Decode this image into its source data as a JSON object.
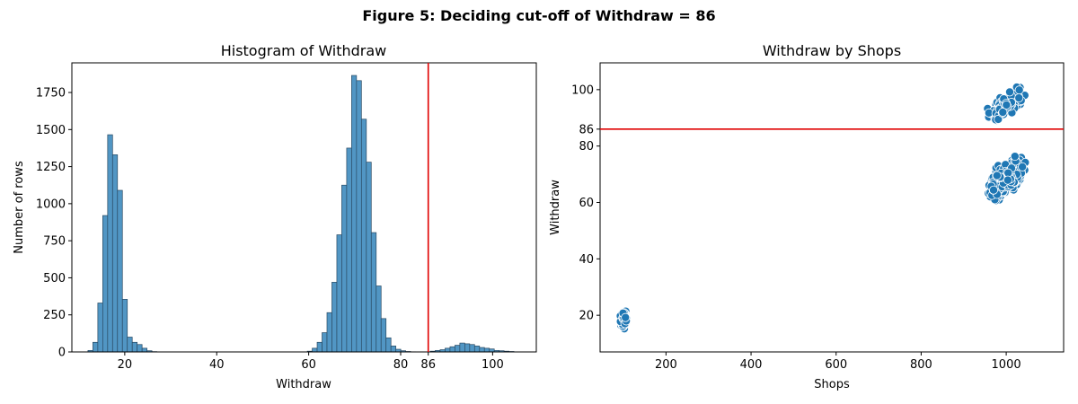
{
  "figure_title": "Figure 5: Deciding cut-off of Withdraw = 86",
  "colors": {
    "bar": "#5196c4",
    "bar_edge": "#2a4a63",
    "point": "#1f77b4",
    "cutoff": "#e00000"
  },
  "chart_data": [
    {
      "type": "bar",
      "title": "Histogram of Withdraw",
      "xlabel": "Withdraw",
      "ylabel": "Number of rows",
      "xlim": [
        8.5,
        109.5
      ],
      "ylim": [
        0,
        1950
      ],
      "grid": false,
      "bin_width": 1.07,
      "bin_starts": [
        12.0,
        13.07,
        14.14,
        15.21,
        16.28,
        17.35,
        18.42,
        19.49,
        20.56,
        21.63,
        22.7,
        23.77,
        24.84,
        25.91,
        59.7,
        60.77,
        61.84,
        62.91,
        63.98,
        65.05,
        66.12,
        67.19,
        68.26,
        69.33,
        70.4,
        71.47,
        72.54,
        73.61,
        74.68,
        75.75,
        76.82,
        77.89,
        78.96,
        80.03,
        81.1,
        82.17,
        86.45,
        87.52,
        88.59,
        89.66,
        90.73,
        91.8,
        92.87,
        93.94,
        95.01,
        96.08,
        97.15,
        98.22,
        99.29,
        100.36,
        101.43,
        102.5,
        103.57
      ],
      "counts": [
        10,
        65,
        330,
        920,
        1465,
        1330,
        1090,
        355,
        100,
        65,
        50,
        25,
        8,
        2,
        5,
        25,
        65,
        130,
        265,
        470,
        790,
        1125,
        1375,
        1865,
        1830,
        1570,
        1280,
        805,
        445,
        225,
        95,
        40,
        18,
        8,
        3,
        1,
        5,
        10,
        15,
        25,
        35,
        45,
        60,
        55,
        50,
        40,
        30,
        25,
        20,
        10,
        8,
        5,
        3
      ],
      "x_ticks": [
        20,
        40,
        60,
        80,
        86,
        100
      ],
      "y_ticks": [
        0,
        250,
        500,
        750,
        1000,
        1250,
        1500,
        1750
      ],
      "annotations": [
        {
          "type": "vline",
          "x": 86
        }
      ]
    },
    {
      "type": "scatter",
      "title": "Withdraw by Shops",
      "xlabel": "Shops",
      "ylabel": "Withdraw",
      "xlim": [
        45,
        1135
      ],
      "ylim": [
        7,
        109.5
      ],
      "grid": false,
      "clusters": [
        {
          "center": [
            100,
            18.5
          ],
          "spread": [
            10,
            3.5
          ],
          "count": 120,
          "slope": 0
        },
        {
          "center": [
            1000,
            68.5
          ],
          "spread": [
            50,
            7
          ],
          "count": 450,
          "slope": 0.1
        },
        {
          "center": [
            1000,
            94.5
          ],
          "spread": [
            50,
            5
          ],
          "count": 170,
          "slope": 0.1
        }
      ],
      "x_ticks": [
        200,
        400,
        600,
        800,
        1000
      ],
      "y_ticks": [
        20,
        40,
        60,
        80,
        86,
        100
      ],
      "annotations": [
        {
          "type": "hline",
          "y": 86
        }
      ]
    }
  ]
}
